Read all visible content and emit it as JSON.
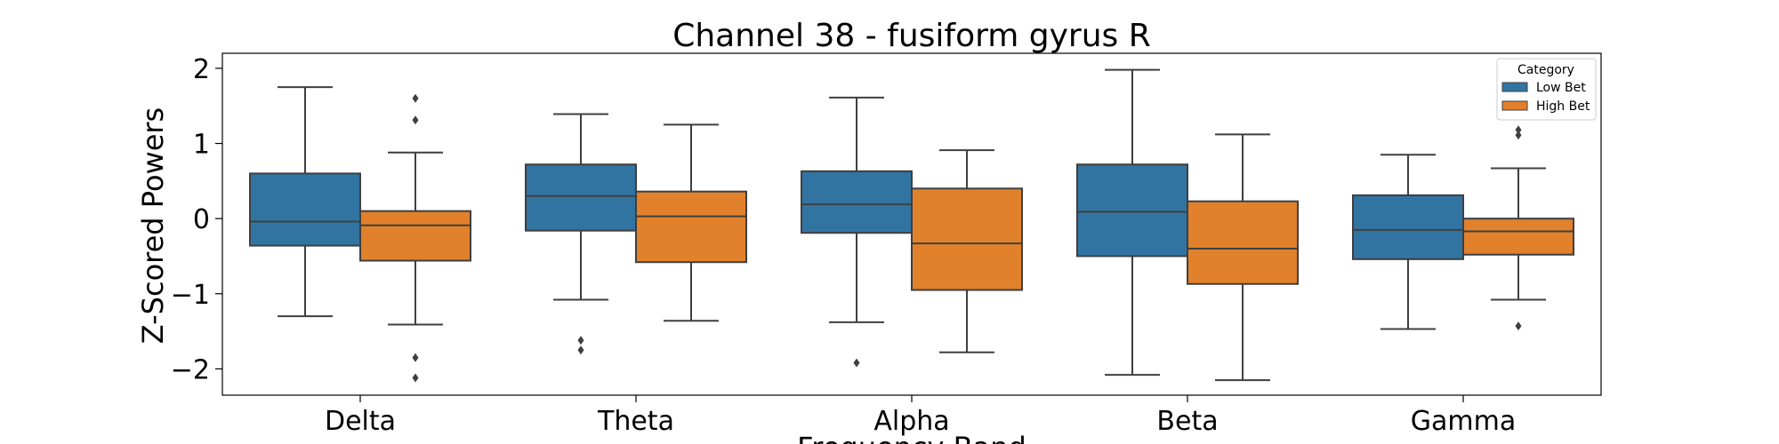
{
  "chart_data": {
    "type": "box",
    "title": "Channel 38 - fusiform gyrus R",
    "xlabel": "Frequency Band",
    "ylabel": "Z-Scored Powers",
    "categories": [
      "Delta",
      "Theta",
      "Alpha",
      "Beta",
      "Gamma"
    ],
    "yticks": [
      -2,
      -1,
      0,
      1,
      2
    ],
    "ytick_labels": [
      "−2",
      "−1",
      "0",
      "1",
      "2"
    ],
    "ylim": [
      -2.35,
      2.2
    ],
    "legend": {
      "title": "Category",
      "position": "top-right"
    },
    "series": [
      {
        "name": "Low Bet",
        "color": "#3274a1",
        "boxes": [
          {
            "whislo": -1.3,
            "q1": -0.36,
            "med": -0.04,
            "q3": 0.6,
            "whishi": 1.75,
            "fliers": []
          },
          {
            "whislo": -1.08,
            "q1": -0.16,
            "med": 0.3,
            "q3": 0.72,
            "whishi": 1.39,
            "fliers": [
              -1.62,
              -1.75
            ]
          },
          {
            "whislo": -1.38,
            "q1": -0.19,
            "med": 0.19,
            "q3": 0.63,
            "whishi": 1.61,
            "fliers": [
              -1.92
            ]
          },
          {
            "whislo": -2.08,
            "q1": -0.5,
            "med": 0.09,
            "q3": 0.72,
            "whishi": 1.98,
            "fliers": []
          },
          {
            "whislo": -1.47,
            "q1": -0.54,
            "med": -0.15,
            "q3": 0.31,
            "whishi": 0.85,
            "fliers": []
          }
        ]
      },
      {
        "name": "High Bet",
        "color": "#e1812c",
        "boxes": [
          {
            "whislo": -1.41,
            "q1": -0.56,
            "med": -0.09,
            "q3": 0.1,
            "whishi": 0.88,
            "fliers": [
              1.6,
              1.31,
              -1.85,
              -2.12
            ]
          },
          {
            "whislo": -1.36,
            "q1": -0.58,
            "med": 0.03,
            "q3": 0.36,
            "whishi": 1.25,
            "fliers": []
          },
          {
            "whislo": -1.78,
            "q1": -0.95,
            "med": -0.33,
            "q3": 0.4,
            "whishi": 0.91,
            "fliers": []
          },
          {
            "whislo": -2.15,
            "q1": -0.87,
            "med": -0.4,
            "q3": 0.23,
            "whishi": 1.12,
            "fliers": []
          },
          {
            "whislo": -1.08,
            "q1": -0.48,
            "med": -0.17,
            "q3": 0.0,
            "whishi": 0.67,
            "fliers": [
              1.18,
              1.11,
              -1.43
            ]
          }
        ]
      }
    ]
  }
}
